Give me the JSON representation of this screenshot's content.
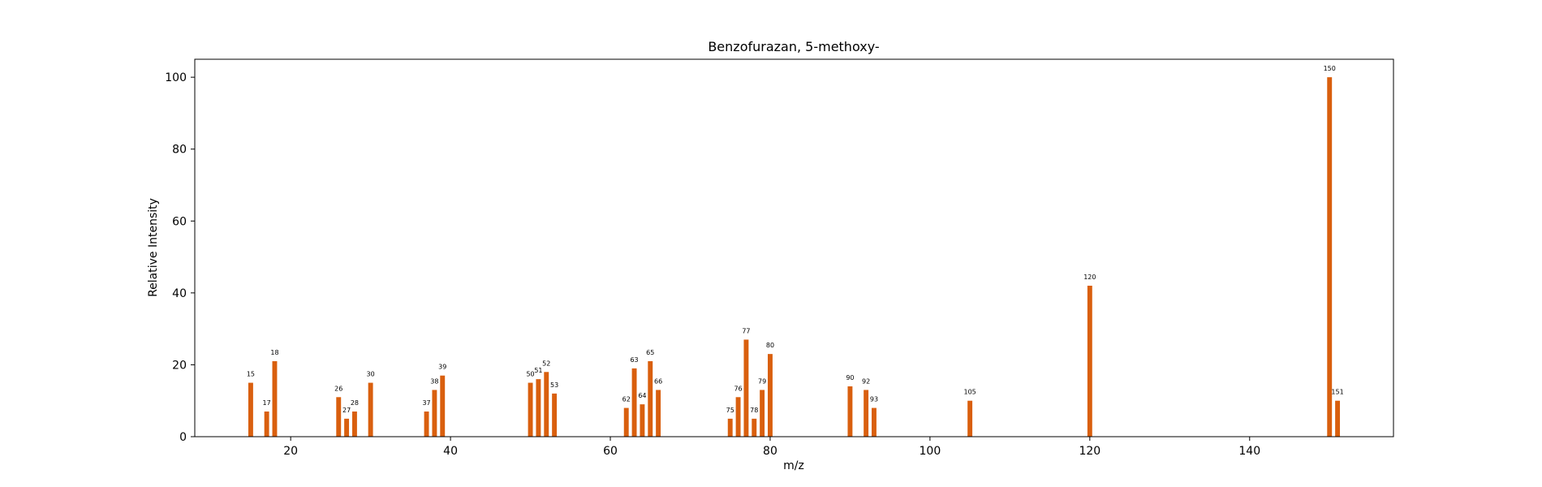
{
  "chart_data": {
    "type": "bar",
    "title": "Benzofurazan, 5-methoxy-",
    "xlabel": "m/z",
    "ylabel": "Relative Intensity",
    "xlim": [
      8,
      158
    ],
    "ylim": [
      0,
      105
    ],
    "xticks": [
      20,
      40,
      60,
      80,
      100,
      120,
      140
    ],
    "yticks": [
      0,
      20,
      40,
      60,
      80,
      100
    ],
    "grid": false,
    "bar_color": "#d95f0e",
    "peaks": [
      {
        "mz": 15,
        "intensity": 15,
        "label": "15"
      },
      {
        "mz": 17,
        "intensity": 7,
        "label": "17"
      },
      {
        "mz": 18,
        "intensity": 21,
        "label": "18"
      },
      {
        "mz": 26,
        "intensity": 11,
        "label": "26"
      },
      {
        "mz": 27,
        "intensity": 5,
        "label": "27"
      },
      {
        "mz": 28,
        "intensity": 7,
        "label": "28"
      },
      {
        "mz": 30,
        "intensity": 15,
        "label": "30"
      },
      {
        "mz": 37,
        "intensity": 7,
        "label": "37"
      },
      {
        "mz": 38,
        "intensity": 13,
        "label": "38"
      },
      {
        "mz": 39,
        "intensity": 17,
        "label": "39"
      },
      {
        "mz": 50,
        "intensity": 15,
        "label": "50"
      },
      {
        "mz": 51,
        "intensity": 16,
        "label": "51"
      },
      {
        "mz": 52,
        "intensity": 18,
        "label": "52"
      },
      {
        "mz": 53,
        "intensity": 12,
        "label": "53"
      },
      {
        "mz": 62,
        "intensity": 8,
        "label": "62"
      },
      {
        "mz": 63,
        "intensity": 19,
        "label": "63"
      },
      {
        "mz": 64,
        "intensity": 9,
        "label": "64"
      },
      {
        "mz": 65,
        "intensity": 21,
        "label": "65"
      },
      {
        "mz": 66,
        "intensity": 13,
        "label": "66"
      },
      {
        "mz": 75,
        "intensity": 5,
        "label": "75"
      },
      {
        "mz": 76,
        "intensity": 11,
        "label": "76"
      },
      {
        "mz": 77,
        "intensity": 27,
        "label": "77"
      },
      {
        "mz": 78,
        "intensity": 5,
        "label": "78"
      },
      {
        "mz": 79,
        "intensity": 13,
        "label": "79"
      },
      {
        "mz": 80,
        "intensity": 23,
        "label": "80"
      },
      {
        "mz": 90,
        "intensity": 14,
        "label": "90"
      },
      {
        "mz": 92,
        "intensity": 13,
        "label": "92"
      },
      {
        "mz": 93,
        "intensity": 8,
        "label": "93"
      },
      {
        "mz": 105,
        "intensity": 10,
        "label": "105"
      },
      {
        "mz": 120,
        "intensity": 42,
        "label": "120"
      },
      {
        "mz": 150,
        "intensity": 100,
        "label": "150"
      },
      {
        "mz": 151,
        "intensity": 10,
        "label": "151"
      }
    ]
  }
}
